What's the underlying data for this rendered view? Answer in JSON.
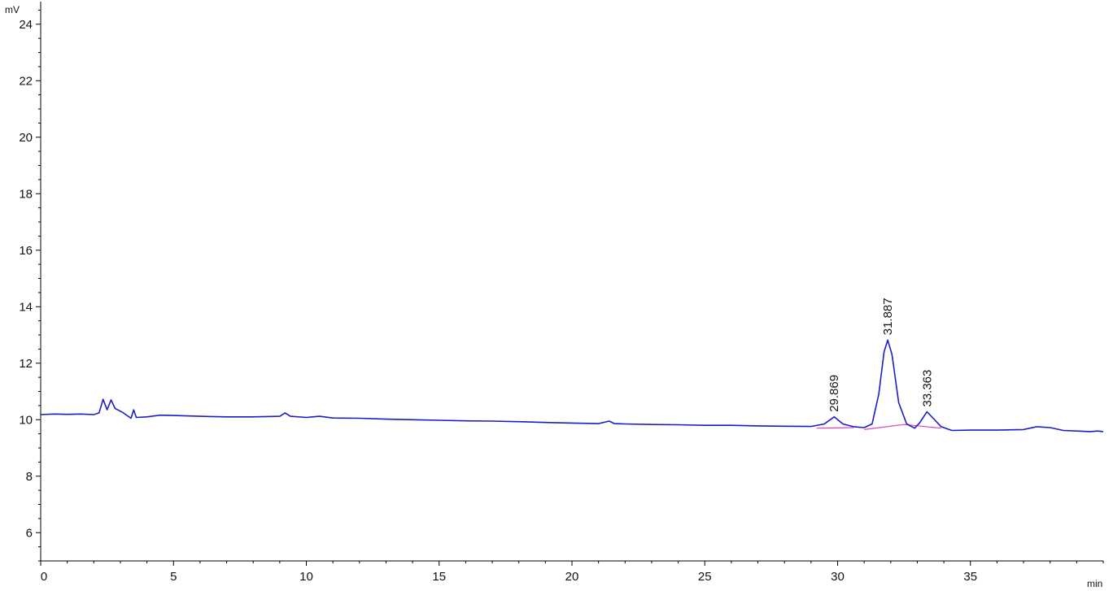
{
  "chart_data": {
    "type": "line",
    "title": "",
    "xlabel": "min",
    "ylabel": "mV",
    "xlim": [
      0,
      40
    ],
    "ylim": [
      5,
      24.8
    ],
    "x_ticks": [
      0,
      5,
      10,
      15,
      20,
      25,
      30,
      35
    ],
    "y_ticks": [
      6,
      8,
      10,
      12,
      14,
      16,
      18,
      20,
      22,
      24
    ],
    "grid": false,
    "legend": "none",
    "colors": {
      "signal": "#1c1cc8",
      "baseline": "#e040c0",
      "axis": "#000000"
    },
    "series": [
      {
        "points": [
          [
            0,
            10.18
          ],
          [
            0.5,
            10.2
          ],
          [
            1,
            10.19
          ],
          [
            1.5,
            10.2
          ],
          [
            2,
            10.18
          ],
          [
            2.2,
            10.24
          ],
          [
            2.35,
            10.72
          ],
          [
            2.5,
            10.35
          ],
          [
            2.65,
            10.7
          ],
          [
            2.8,
            10.4
          ],
          [
            3.1,
            10.25
          ],
          [
            3.4,
            10.05
          ],
          [
            3.5,
            10.35
          ],
          [
            3.6,
            10.08
          ],
          [
            4,
            10.1
          ],
          [
            4.5,
            10.16
          ],
          [
            5,
            10.15
          ],
          [
            6,
            10.12
          ],
          [
            7,
            10.1
          ],
          [
            8,
            10.1
          ],
          [
            9,
            10.12
          ],
          [
            9.2,
            10.24
          ],
          [
            9.4,
            10.12
          ],
          [
            10,
            10.08
          ],
          [
            10.5,
            10.12
          ],
          [
            11,
            10.06
          ],
          [
            12,
            10.05
          ],
          [
            13,
            10.02
          ],
          [
            14,
            10.0
          ],
          [
            15,
            9.98
          ],
          [
            16,
            9.96
          ],
          [
            17,
            9.95
          ],
          [
            18,
            9.93
          ],
          [
            19,
            9.9
          ],
          [
            20,
            9.88
          ],
          [
            21,
            9.86
          ],
          [
            21.4,
            9.95
          ],
          [
            21.6,
            9.86
          ],
          [
            22,
            9.85
          ],
          [
            23,
            9.83
          ],
          [
            24,
            9.82
          ],
          [
            25,
            9.8
          ],
          [
            26,
            9.8
          ],
          [
            27,
            9.78
          ],
          [
            28,
            9.77
          ],
          [
            29,
            9.76
          ],
          [
            29.5,
            9.85
          ],
          [
            29.87,
            10.1
          ],
          [
            30.2,
            9.85
          ],
          [
            30.6,
            9.75
          ],
          [
            31,
            9.72
          ],
          [
            31.3,
            9.85
          ],
          [
            31.55,
            10.9
          ],
          [
            31.75,
            12.4
          ],
          [
            31.887,
            12.82
          ],
          [
            32.05,
            12.3
          ],
          [
            32.3,
            10.6
          ],
          [
            32.6,
            9.85
          ],
          [
            32.9,
            9.7
          ],
          [
            33.1,
            9.9
          ],
          [
            33.363,
            10.28
          ],
          [
            33.6,
            10.05
          ],
          [
            33.9,
            9.75
          ],
          [
            34.3,
            9.62
          ],
          [
            35,
            9.63
          ],
          [
            36,
            9.63
          ],
          [
            37,
            9.65
          ],
          [
            37.5,
            9.75
          ],
          [
            38,
            9.72
          ],
          [
            38.5,
            9.62
          ],
          [
            39,
            9.6
          ],
          [
            39.5,
            9.58
          ],
          [
            39.8,
            9.6
          ],
          [
            40,
            9.58
          ]
        ]
      }
    ],
    "baselines": [
      [
        [
          29.2,
          9.7
        ],
        [
          30.6,
          9.72
        ]
      ],
      [
        [
          31.0,
          9.65
        ],
        [
          32.5,
          9.83
        ],
        [
          33.9,
          9.7
        ]
      ]
    ],
    "peaks": [
      {
        "rt": 29.869,
        "label": "29.869",
        "height": 10.1
      },
      {
        "rt": 31.887,
        "label": "31.887",
        "height": 12.82
      },
      {
        "rt": 33.363,
        "label": "33.363",
        "height": 10.28
      }
    ]
  }
}
